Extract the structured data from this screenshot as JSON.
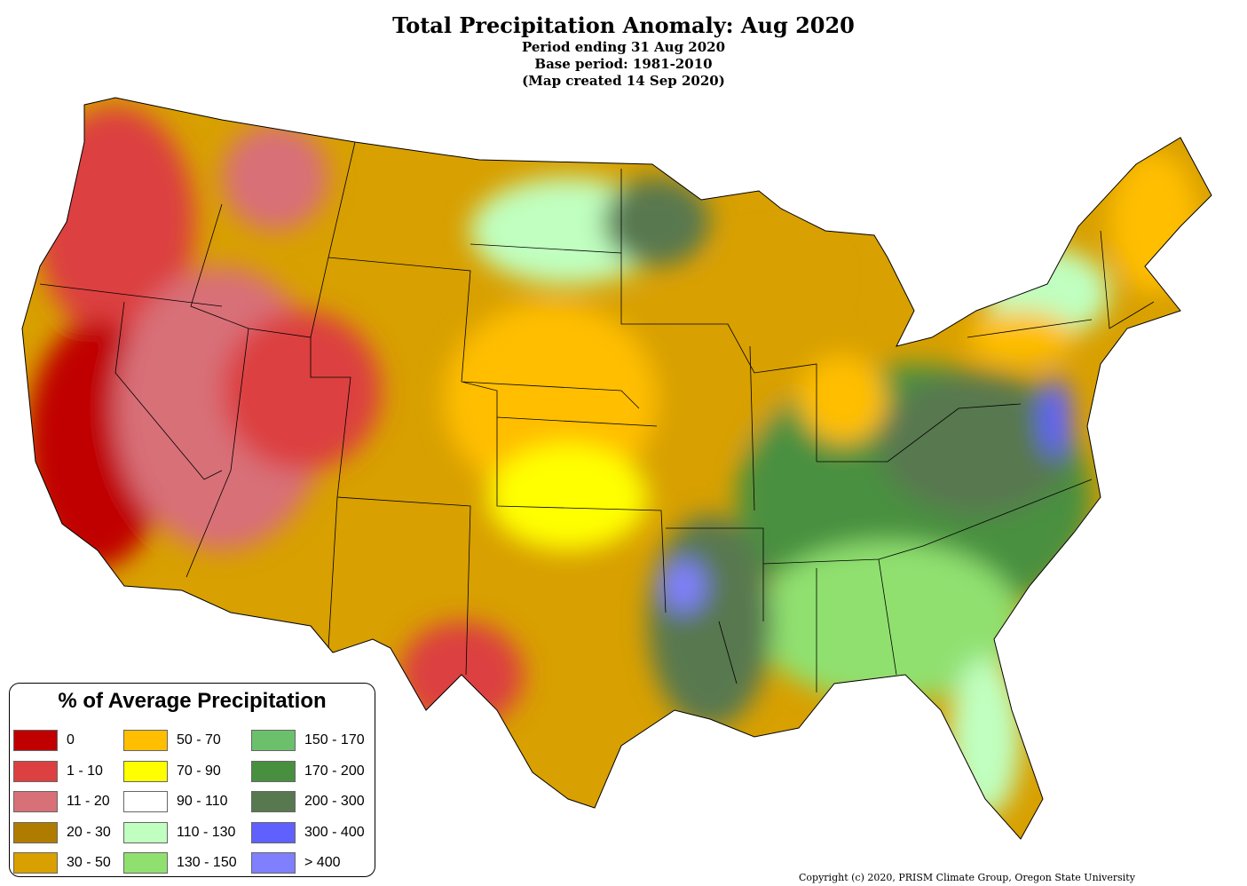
{
  "title": "Total Precipitation Anomaly: Aug 2020",
  "subtitle_lines": [
    "Period ending 31 Aug 2020",
    "Base period: 1981-2010",
    "(Map created 14 Sep 2020)"
  ],
  "legend": {
    "title": "% of Average Precipitation",
    "items": [
      {
        "label": "0",
        "color": "#C00000"
      },
      {
        "label": "1 - 10",
        "color": "#DC4040"
      },
      {
        "label": "11 - 20",
        "color": "#D87078"
      },
      {
        "label": "20 - 30",
        "color": "#B07C00"
      },
      {
        "label": "30 - 50",
        "color": "#D8A000"
      },
      {
        "label": "50 - 70",
        "color": "#FFBE00"
      },
      {
        "label": "70 - 90",
        "color": "#FFFF00"
      },
      {
        "label": "90 - 110",
        "color": "#FFFFFF"
      },
      {
        "label": "110 - 130",
        "color": "#C0FFC0"
      },
      {
        "label": "130 - 150",
        "color": "#90E070"
      },
      {
        "label": "150 - 170",
        "color": "#6CC06C"
      },
      {
        "label": "170 - 200",
        "color": "#489040"
      },
      {
        "label": "200 - 300",
        "color": "#587850"
      },
      {
        "label": "300 - 400",
        "color": "#6060FF"
      },
      {
        "label": "> 400",
        "color": "#8080FF"
      }
    ]
  },
  "copyright": "Copyright (c) 2020, PRISM Climate Group, Oregon State University"
}
